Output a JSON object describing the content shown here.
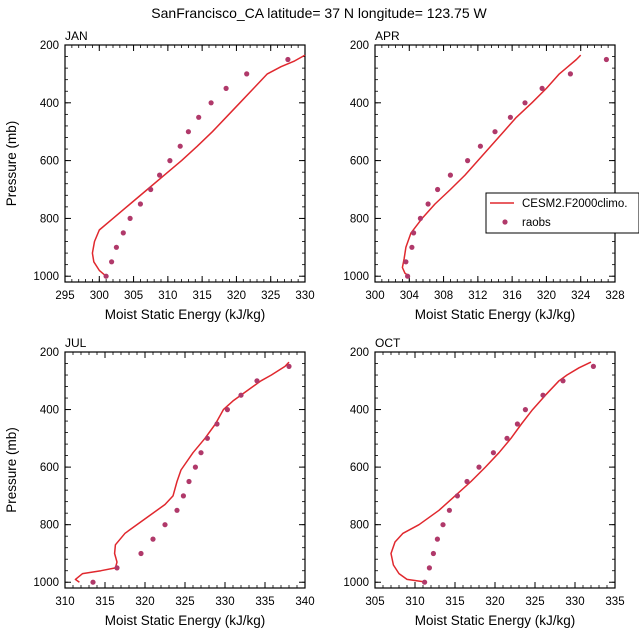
{
  "title": "SanFrancisco_CA  latitude= 37 N longitude= 123.75 W",
  "colors": {
    "model": "#e0282e",
    "obs": "#b0396a",
    "axis": "#000000"
  },
  "legend": {
    "model_label": "CESM2.F2000climo.",
    "obs_label": "raobs",
    "placement": "right, beside APR panel"
  },
  "chart_data": [
    {
      "type": "line",
      "panel": "JAN",
      "xlabel": "Moist Static Energy (kJ/kg)",
      "ylabel": "Pressure (mb)",
      "xlim": [
        295,
        330
      ],
      "ylim": [
        1020,
        200
      ],
      "xticks": [
        295,
        300,
        305,
        310,
        315,
        320,
        325,
        330
      ],
      "yticks": [
        200,
        400,
        600,
        800,
        1000
      ],
      "series": [
        {
          "name": "CESM2.F2000climo.",
          "kind": "line",
          "points": [
            [
              301.0,
              1000
            ],
            [
              300.0,
              980
            ],
            [
              299.2,
              950
            ],
            [
              299.0,
              920
            ],
            [
              299.3,
              880
            ],
            [
              300.0,
              840
            ],
            [
              302.0,
              800
            ],
            [
              304.5,
              750
            ],
            [
              307.0,
              700
            ],
            [
              309.5,
              650
            ],
            [
              312.0,
              600
            ],
            [
              314.3,
              550
            ],
            [
              316.5,
              500
            ],
            [
              318.5,
              450
            ],
            [
              320.5,
              400
            ],
            [
              322.5,
              350
            ],
            [
              324.5,
              300
            ],
            [
              326.5,
              275
            ],
            [
              328.5,
              255
            ],
            [
              330.0,
              235
            ]
          ]
        },
        {
          "name": "raobs",
          "kind": "scatter",
          "points": [
            [
              301.0,
              1000
            ],
            [
              301.8,
              950
            ],
            [
              302.5,
              900
            ],
            [
              303.5,
              850
            ],
            [
              304.5,
              800
            ],
            [
              306.0,
              750
            ],
            [
              307.5,
              700
            ],
            [
              308.8,
              650
            ],
            [
              310.3,
              600
            ],
            [
              311.8,
              550
            ],
            [
              313.0,
              500
            ],
            [
              314.5,
              450
            ],
            [
              316.3,
              400
            ],
            [
              318.5,
              350
            ],
            [
              321.5,
              300
            ],
            [
              327.5,
              250
            ]
          ]
        }
      ]
    },
    {
      "type": "line",
      "panel": "APR",
      "xlabel": "Moist Static Energy (kJ/kg)",
      "ylabel": "",
      "xlim": [
        300,
        328
      ],
      "ylim": [
        1020,
        200
      ],
      "xticks": [
        300,
        304,
        308,
        312,
        316,
        320,
        324,
        328
      ],
      "yticks": [
        200,
        400,
        600,
        800,
        1000
      ],
      "series": [
        {
          "name": "CESM2.F2000climo.",
          "kind": "line",
          "points": [
            [
              304.0,
              1000
            ],
            [
              303.5,
              990
            ],
            [
              303.2,
              970
            ],
            [
              303.4,
              940
            ],
            [
              303.6,
              900
            ],
            [
              304.2,
              850
            ],
            [
              305.5,
              800
            ],
            [
              307.0,
              750
            ],
            [
              308.8,
              700
            ],
            [
              310.5,
              650
            ],
            [
              312.0,
              600
            ],
            [
              313.5,
              550
            ],
            [
              315.0,
              500
            ],
            [
              316.5,
              450
            ],
            [
              318.3,
              400
            ],
            [
              320.0,
              350
            ],
            [
              321.5,
              300
            ],
            [
              322.5,
              275
            ],
            [
              323.5,
              250
            ],
            [
              324.0,
              235
            ]
          ]
        },
        {
          "name": "raobs",
          "kind": "scatter",
          "points": [
            [
              303.8,
              1000
            ],
            [
              303.6,
              950
            ],
            [
              304.3,
              900
            ],
            [
              304.5,
              850
            ],
            [
              305.3,
              800
            ],
            [
              306.2,
              750
            ],
            [
              307.3,
              700
            ],
            [
              308.8,
              650
            ],
            [
              310.8,
              600
            ],
            [
              312.3,
              550
            ],
            [
              314.0,
              500
            ],
            [
              315.8,
              450
            ],
            [
              317.5,
              400
            ],
            [
              319.5,
              350
            ],
            [
              322.8,
              300
            ],
            [
              327.0,
              250
            ]
          ]
        }
      ]
    },
    {
      "type": "line",
      "panel": "JUL",
      "xlabel": "Moist Static Energy (kJ/kg)",
      "ylabel": "Pressure (mb)",
      "xlim": [
        310,
        340
      ],
      "ylim": [
        1020,
        200
      ],
      "xticks": [
        310,
        315,
        320,
        325,
        330,
        335,
        340
      ],
      "yticks": [
        200,
        400,
        600,
        800,
        1000
      ],
      "series": [
        {
          "name": "CESM2.F2000climo.",
          "kind": "line",
          "points": [
            [
              311.8,
              1000
            ],
            [
              311.3,
              990
            ],
            [
              312.2,
              970
            ],
            [
              314.5,
              960
            ],
            [
              316.3,
              950
            ],
            [
              316.5,
              930
            ],
            [
              316.2,
              900
            ],
            [
              316.3,
              870
            ],
            [
              317.5,
              830
            ],
            [
              320.0,
              780
            ],
            [
              322.5,
              730
            ],
            [
              323.5,
              700
            ],
            [
              324.0,
              650
            ],
            [
              324.5,
              610
            ],
            [
              326.0,
              550
            ],
            [
              327.5,
              500
            ],
            [
              328.8,
              450
            ],
            [
              329.8,
              400
            ],
            [
              331.0,
              370
            ],
            [
              333.0,
              330
            ],
            [
              334.5,
              300
            ],
            [
              335.8,
              280
            ],
            [
              337.5,
              250
            ],
            [
              338.0,
              235
            ]
          ]
        },
        {
          "name": "raobs",
          "kind": "scatter",
          "points": [
            [
              313.5,
              1000
            ],
            [
              316.5,
              950
            ],
            [
              319.5,
              900
            ],
            [
              321.0,
              850
            ],
            [
              322.5,
              800
            ],
            [
              324.0,
              750
            ],
            [
              324.8,
              700
            ],
            [
              325.5,
              650
            ],
            [
              326.3,
              600
            ],
            [
              327.0,
              550
            ],
            [
              327.8,
              500
            ],
            [
              329.0,
              450
            ],
            [
              330.3,
              400
            ],
            [
              332.0,
              350
            ],
            [
              334.0,
              300
            ],
            [
              338.0,
              250
            ]
          ]
        }
      ]
    },
    {
      "type": "line",
      "panel": "OCT",
      "xlabel": "Moist Static Energy (kJ/kg)",
      "ylabel": "",
      "xlim": [
        305,
        335
      ],
      "ylim": [
        1020,
        200
      ],
      "xticks": [
        305,
        310,
        315,
        320,
        325,
        330,
        335
      ],
      "yticks": [
        200,
        400,
        600,
        800,
        1000
      ],
      "series": [
        {
          "name": "CESM2.F2000climo.",
          "kind": "line",
          "points": [
            [
              311.5,
              1000
            ],
            [
              309.0,
              990
            ],
            [
              308.0,
              970
            ],
            [
              307.3,
              940
            ],
            [
              307.0,
              900
            ],
            [
              307.5,
              860
            ],
            [
              308.5,
              830
            ],
            [
              310.5,
              800
            ],
            [
              313.0,
              750
            ],
            [
              315.0,
              700
            ],
            [
              317.0,
              650
            ],
            [
              318.8,
              600
            ],
            [
              320.5,
              550
            ],
            [
              322.0,
              500
            ],
            [
              323.3,
              450
            ],
            [
              324.7,
              400
            ],
            [
              326.3,
              350
            ],
            [
              328.0,
              300
            ],
            [
              329.0,
              280
            ],
            [
              330.5,
              255
            ],
            [
              332.0,
              235
            ]
          ]
        },
        {
          "name": "raobs",
          "kind": "scatter",
          "points": [
            [
              311.2,
              1000
            ],
            [
              311.8,
              950
            ],
            [
              312.3,
              900
            ],
            [
              312.8,
              850
            ],
            [
              313.5,
              800
            ],
            [
              314.3,
              750
            ],
            [
              315.3,
              700
            ],
            [
              316.5,
              650
            ],
            [
              318.0,
              600
            ],
            [
              319.8,
              550
            ],
            [
              321.5,
              500
            ],
            [
              322.8,
              450
            ],
            [
              323.8,
              400
            ],
            [
              326.0,
              350
            ],
            [
              328.5,
              300
            ],
            [
              332.3,
              250
            ]
          ]
        }
      ]
    }
  ]
}
